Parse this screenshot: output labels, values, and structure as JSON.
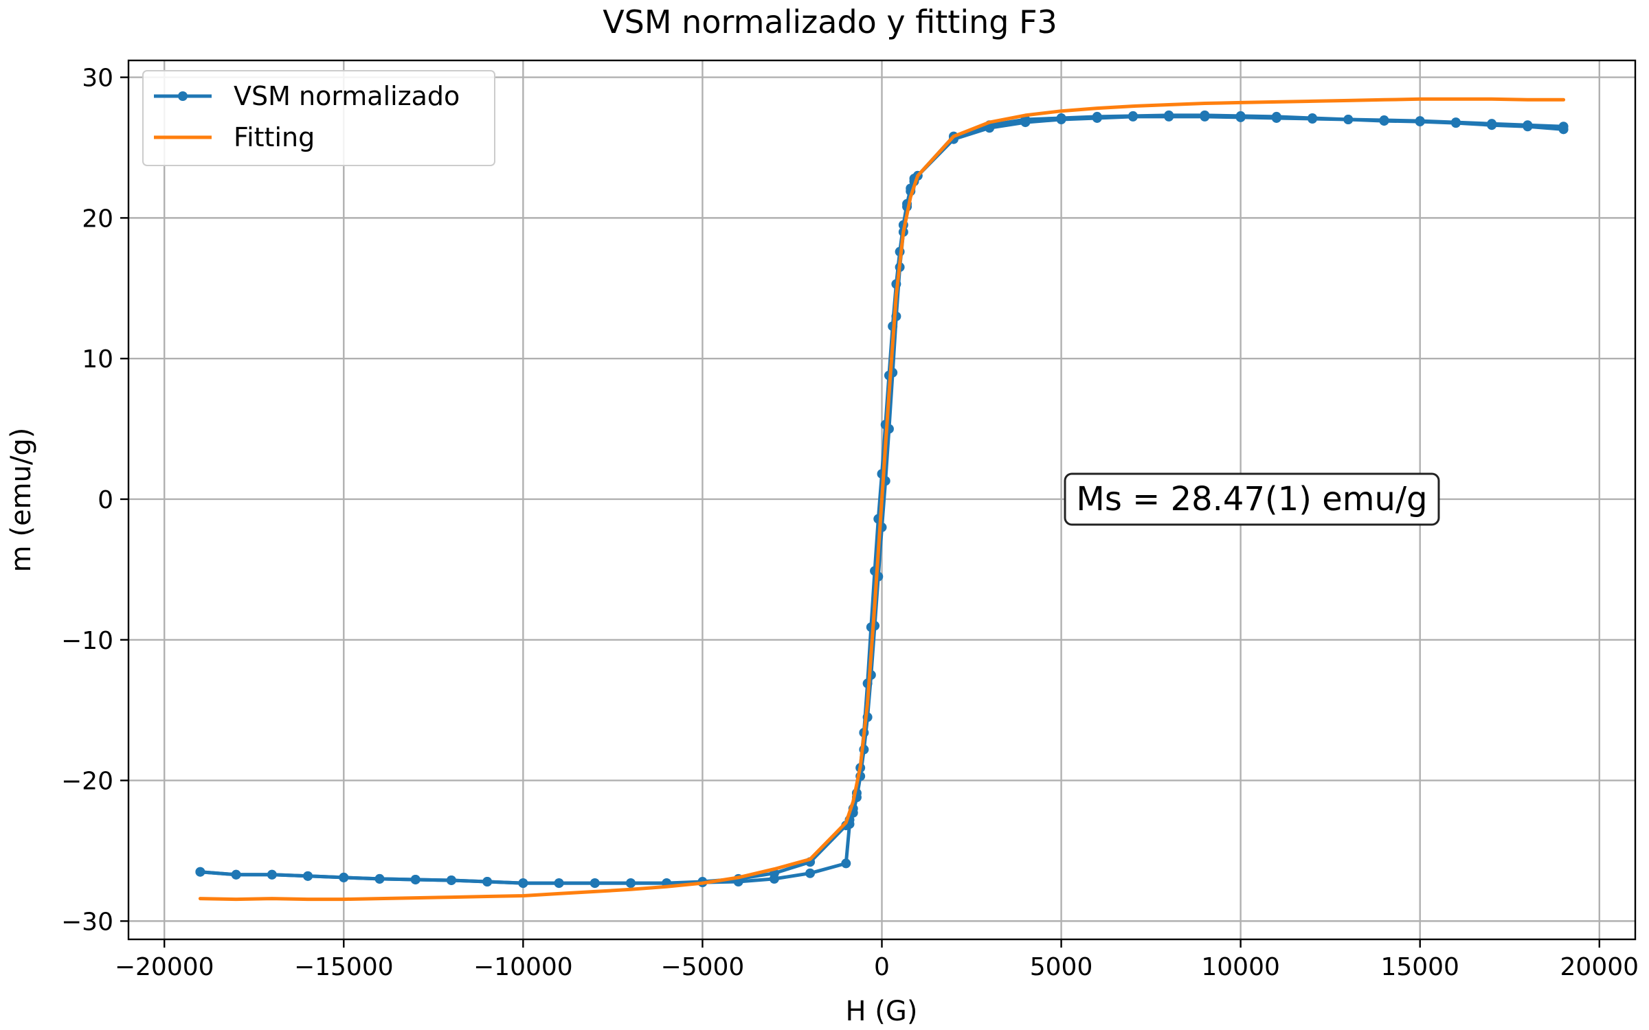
{
  "chart_data": {
    "type": "line",
    "title": "VSM normalizado y fitting F3",
    "xlabel": "H (G)",
    "ylabel": "m (emu/g)",
    "xlim": [
      -21000,
      21000
    ],
    "ylim": [
      -31.3,
      31.2
    ],
    "xticks": [
      -20000,
      -15000,
      -10000,
      -5000,
      0,
      5000,
      10000,
      15000,
      20000
    ],
    "xtick_labels": [
      "−20000",
      "−15000",
      "−10000",
      "−5000",
      "0",
      "5000",
      "10000",
      "15000",
      "20000"
    ],
    "yticks": [
      -30,
      -20,
      -10,
      0,
      10,
      20,
      30
    ],
    "ytick_labels": [
      "−30",
      "−20",
      "−10",
      "0",
      "10",
      "20",
      "30"
    ],
    "grid": true,
    "legend_position": "top-left",
    "annotation": "Ms = 28.47(1) emu/g",
    "series": [
      {
        "name": "VSM normalizado",
        "color": "#1f77b4",
        "marker": "circle",
        "branches": [
          {
            "x": [
              19000,
              18000,
              17000,
              16000,
              15000,
              14000,
              13000,
              12000,
              11000,
              10000,
              9000,
              8000,
              7000,
              6000,
              5000,
              4000,
              3000,
              2000,
              1000,
              900,
              800,
              700,
              600,
              500,
              400,
              300,
              200,
              100,
              0,
              -100,
              -200,
              -300,
              -400,
              -500,
              -600,
              -700,
              -800,
              -900,
              -1000,
              -2000,
              -3000,
              -4000,
              -5000,
              -6000,
              -7000,
              -8000,
              -9000,
              -10000,
              -11000,
              -12000,
              -13000,
              -14000,
              -15000,
              -16000,
              -17000,
              -18000,
              -19000
            ],
            "y": [
              26.5,
              26.6,
              26.7,
              26.8,
              26.9,
              26.95,
              27.0,
              27.05,
              27.1,
              27.15,
              27.2,
              27.2,
              27.2,
              27.1,
              27.0,
              26.8,
              26.4,
              25.6,
              23.0,
              22.6,
              21.9,
              20.8,
              19.0,
              16.5,
              13.0,
              9.0,
              5.0,
              1.3,
              -2.0,
              -5.5,
              -9.0,
              -12.5,
              -15.5,
              -17.8,
              -19.7,
              -21.2,
              -22.3,
              -23.1,
              -25.9,
              -26.6,
              -27.0,
              -27.2,
              -27.25,
              -27.3,
              -27.3,
              -27.3,
              -27.3,
              -27.3,
              -27.2,
              -27.1,
              -27.05,
              -27.0,
              -26.9,
              -26.8,
              -26.7,
              -26.7,
              -26.5
            ]
          },
          {
            "x": [
              -19000,
              -18000,
              -17000,
              -16000,
              -15000,
              -14000,
              -13000,
              -12000,
              -11000,
              -10000,
              -9000,
              -8000,
              -7000,
              -6000,
              -5000,
              -4000,
              -3000,
              -2000,
              -1000,
              -900,
              -800,
              -700,
              -600,
              -500,
              -400,
              -300,
              -200,
              -100,
              0,
              100,
              200,
              300,
              400,
              500,
              600,
              700,
              800,
              900,
              1000,
              2000,
              3000,
              4000,
              5000,
              6000,
              7000,
              8000,
              9000,
              10000,
              11000,
              12000,
              13000,
              14000,
              15000,
              16000,
              17000,
              18000,
              19000
            ],
            "y": [
              -26.5,
              -26.7,
              -26.7,
              -26.8,
              -26.9,
              -27.0,
              -27.05,
              -27.1,
              -27.2,
              -27.3,
              -27.3,
              -27.3,
              -27.3,
              -27.3,
              -27.2,
              -27.0,
              -26.6,
              -25.8,
              -23.2,
              -22.8,
              -22.0,
              -20.9,
              -19.1,
              -16.6,
              -13.1,
              -9.1,
              -5.1,
              -1.4,
              1.8,
              5.3,
              8.8,
              12.3,
              15.3,
              17.6,
              19.5,
              21.0,
              22.1,
              22.8,
              23.0,
              25.8,
              26.6,
              27.0,
              27.1,
              27.2,
              27.25,
              27.3,
              27.3,
              27.25,
              27.2,
              27.1,
              27.0,
              26.9,
              26.85,
              26.75,
              26.6,
              26.5,
              26.3
            ]
          }
        ]
      },
      {
        "name": "Fitting",
        "color": "#ff7f0e",
        "marker": "none",
        "branches": [
          {
            "x": [
              -19000,
              -18000,
              -17000,
              -16000,
              -15000,
              -14000,
              -13000,
              -12000,
              -11000,
              -10000,
              -9000,
              -8000,
              -7000,
              -6000,
              -5000,
              -4000,
              -3000,
              -2000,
              -1000,
              -800,
              -600,
              -400,
              -200,
              0,
              200,
              400,
              600,
              800,
              1000,
              2000,
              3000,
              4000,
              5000,
              6000,
              7000,
              8000,
              9000,
              10000,
              11000,
              12000,
              13000,
              14000,
              15000,
              16000,
              17000,
              18000,
              19000
            ],
            "y": [
              -28.4,
              -28.45,
              -28.4,
              -28.45,
              -28.45,
              -28.4,
              -28.35,
              -28.3,
              -28.25,
              -28.2,
              -28.05,
              -27.9,
              -27.75,
              -27.55,
              -27.3,
              -26.9,
              -26.3,
              -25.6,
              -23.0,
              -21.5,
              -19.0,
              -14.5,
              -7.5,
              0.0,
              7.5,
              14.5,
              19.0,
              21.5,
              23.0,
              25.8,
              26.8,
              27.3,
              27.6,
              27.8,
              27.95,
              28.05,
              28.15,
              28.2,
              28.25,
              28.3,
              28.35,
              28.4,
              28.45,
              28.45,
              28.45,
              28.4,
              28.4
            ]
          }
        ]
      }
    ]
  }
}
